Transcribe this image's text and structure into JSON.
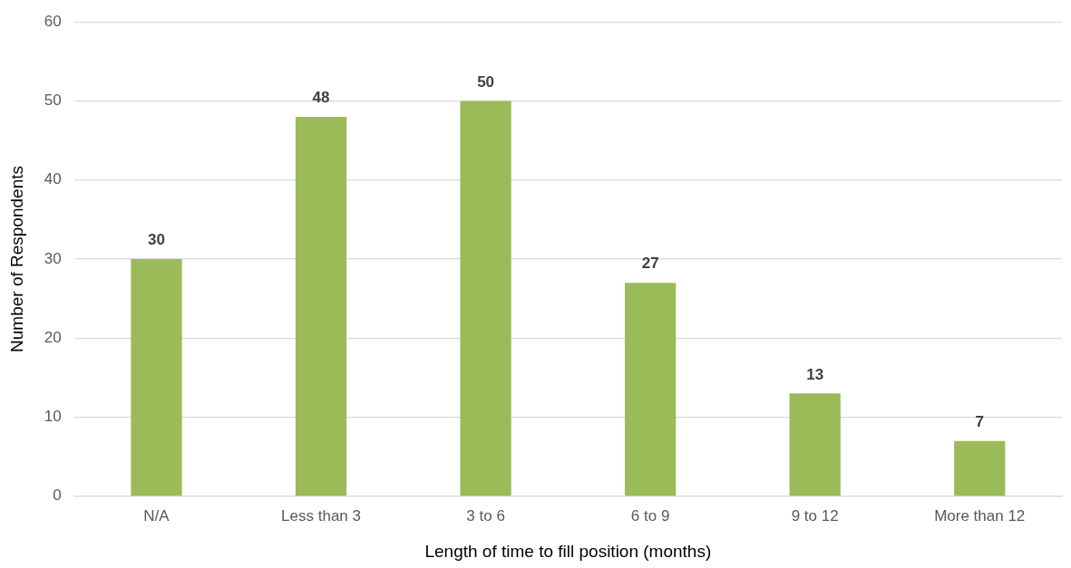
{
  "chart_data": {
    "type": "bar",
    "xlabel": "Length of time to fill position (months)",
    "ylabel": "Number of Respondents",
    "categories": [
      "N/A",
      "Less than 3",
      "3 to 6",
      "6 to 9",
      "9 to 12",
      "More than 12"
    ],
    "values": [
      30,
      48,
      50,
      27,
      13,
      7
    ],
    "color": "#9bbb59",
    "ylim": [
      0,
      60
    ],
    "yticks": [
      0,
      10,
      20,
      30,
      40,
      50,
      60
    ],
    "grid": "y",
    "data_labels": true
  }
}
